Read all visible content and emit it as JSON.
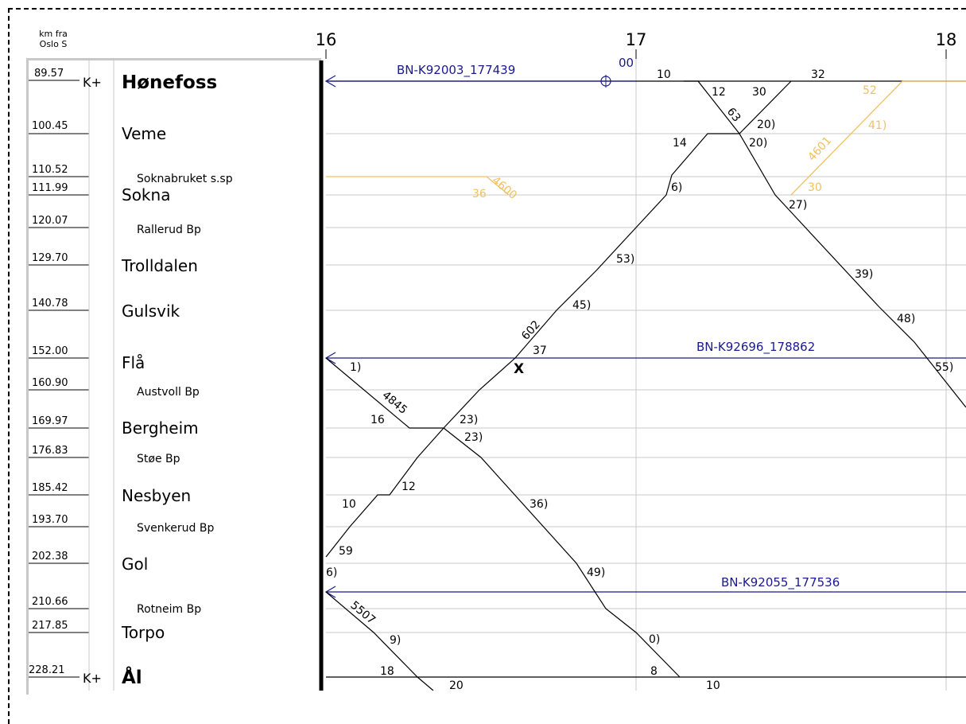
{
  "header": {
    "line1": "km fra",
    "line2": "Oslo S"
  },
  "hours": [
    "16",
    "17",
    "18"
  ],
  "k_plus_label": "K+",
  "stations": [
    {
      "km": "89.57",
      "name": "Hønefoss",
      "type": "major"
    },
    {
      "km": "100.45",
      "name": "Veme",
      "type": "main"
    },
    {
      "km": "110.52",
      "name": "Soknabruket s.sp",
      "type": "minor"
    },
    {
      "km": "111.99",
      "name": "Sokna",
      "type": "main"
    },
    {
      "km": "120.07",
      "name": "Rallerud Bp",
      "type": "minor"
    },
    {
      "km": "129.70",
      "name": "Trolldalen",
      "type": "main"
    },
    {
      "km": "140.78",
      "name": "Gulsvik",
      "type": "main"
    },
    {
      "km": "152.00",
      "name": "Flå",
      "type": "main"
    },
    {
      "km": "160.90",
      "name": "Austvoll Bp",
      "type": "minor"
    },
    {
      "km": "169.97",
      "name": "Bergheim",
      "type": "main"
    },
    {
      "km": "176.83",
      "name": "Støe Bp",
      "type": "minor"
    },
    {
      "km": "185.42",
      "name": "Nesbyen",
      "type": "main"
    },
    {
      "km": "193.70",
      "name": "Svenkerud Bp",
      "type": "minor"
    },
    {
      "km": "202.38",
      "name": "Gol",
      "type": "main"
    },
    {
      "km": "210.66",
      "name": "Rotneim Bp",
      "type": "minor"
    },
    {
      "km": "217.85",
      "name": "Torpo",
      "type": "main"
    },
    {
      "km": "228.21",
      "name": "Ål",
      "type": "major"
    }
  ],
  "possessions": [
    "BN-K92003_177439",
    "BN-K92696_178862",
    "BN-K92055_177536"
  ],
  "trains": [
    "4600",
    "4601",
    "63",
    "602",
    "4845",
    "5507"
  ],
  "crossing_mark": "X",
  "time_labels": [
    "00",
    "10",
    "12",
    "30",
    "32",
    "52",
    "20)",
    "20)",
    "41)",
    "14",
    "36",
    "6)",
    "30",
    "27)",
    "53)",
    "39)",
    "45)",
    "48)",
    "37",
    "1)",
    "55)",
    "16",
    "23)",
    "23)",
    "12",
    "10",
    "36)",
    "59",
    "49)",
    "6)",
    "9)",
    "0)",
    "18",
    "8",
    "20",
    "10"
  ],
  "colors": {
    "train": "#000000",
    "freight": "#f0c060",
    "possession": "#1a1a8c",
    "grid": "#c8c8c8"
  }
}
